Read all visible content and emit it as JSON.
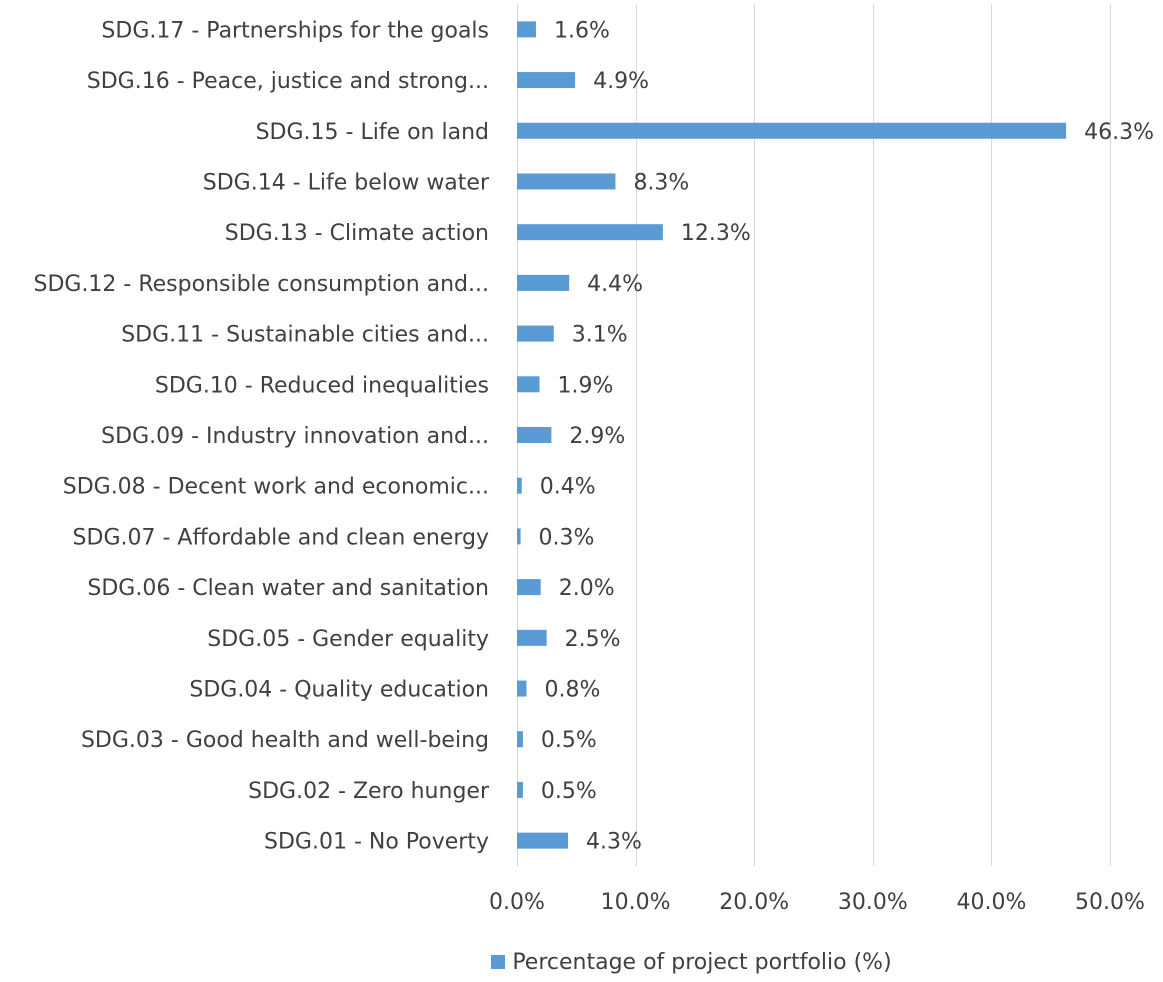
{
  "chart_data": {
    "type": "bar",
    "orientation": "horizontal",
    "categories": [
      "SDG.01 - No Poverty",
      "SDG.02 - Zero hunger",
      "SDG.03 - Good health and well-being",
      "SDG.04 - Quality education",
      "SDG.05 - Gender equality",
      "SDG.06 - Clean water and sanitation",
      "SDG.07 - Affordable and clean energy",
      "SDG.08 - Decent work and economic...",
      "SDG.09 - Industry innovation and...",
      "SDG.10 - Reduced inequalities",
      "SDG.11 - Sustainable cities and...",
      "SDG.12 - Responsible consumption and...",
      "SDG.13 - Climate action",
      "SDG.14 - Life below water",
      "SDG.15 - Life on land",
      "SDG.16 - Peace, justice and strong...",
      "SDG.17 - Partnerships for the goals"
    ],
    "series": [
      {
        "name": "Percentage of project portfolio (%)",
        "values": [
          4.3,
          0.5,
          0.5,
          0.8,
          2.5,
          2.0,
          0.3,
          0.4,
          2.9,
          1.9,
          3.1,
          4.4,
          12.3,
          8.3,
          46.3,
          4.9,
          1.6
        ],
        "data_labels": [
          "4.3%",
          "0.5%",
          "0.5%",
          "0.8%",
          "2.5%",
          "2.0%",
          "0.3%",
          "0.4%",
          "2.9%",
          "1.9%",
          "3.1%",
          "4.4%",
          "12.3%",
          "8.3%",
          "46.3%",
          "4.9%",
          "1.6%"
        ]
      }
    ],
    "xlim": [
      0,
      50
    ],
    "x_ticks": [
      0,
      10,
      20,
      30,
      40,
      50
    ],
    "x_tick_labels": [
      "0.0%",
      "10.0%",
      "20.0%",
      "30.0%",
      "40.0%",
      "50.0%"
    ],
    "grid": "vertical",
    "legend_position": "bottom",
    "bar_color": "#5b9bd5",
    "grid_color": "#d9d9d9",
    "text_color": "#404040",
    "title": "",
    "xlabel": "",
    "ylabel": ""
  }
}
